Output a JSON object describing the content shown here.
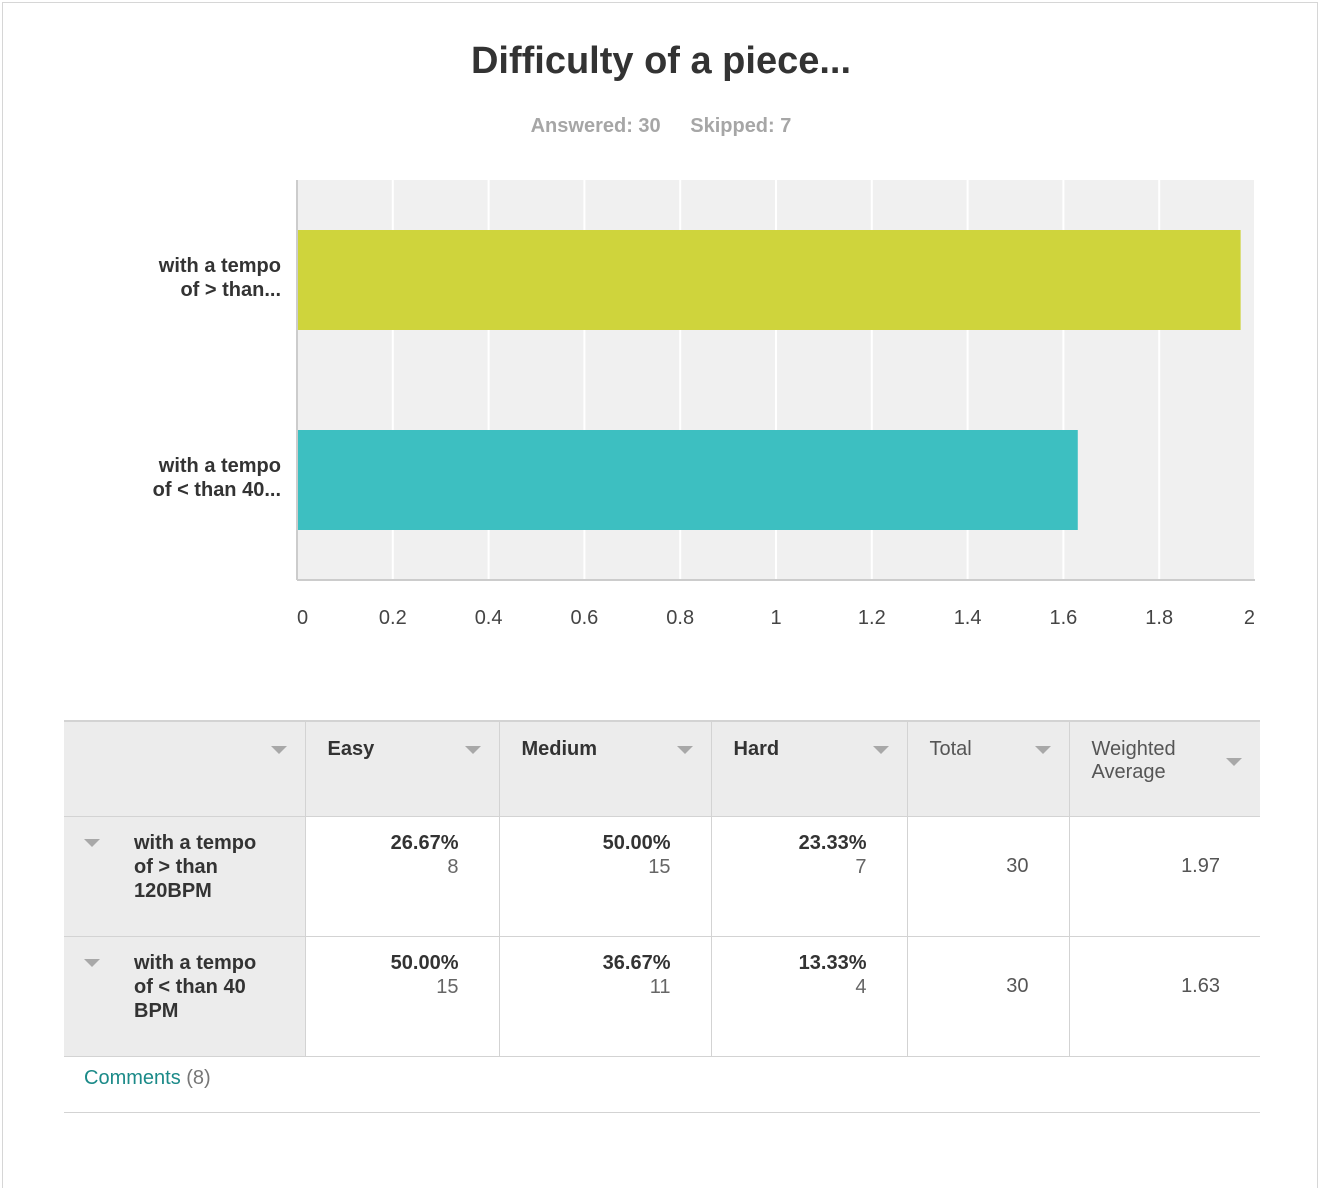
{
  "header": {
    "title": "Difficulty of a piece...",
    "answered": "Answered: 30",
    "skipped": "Skipped: 7"
  },
  "chart_data": {
    "type": "bar",
    "orientation": "horizontal",
    "title": "Difficulty of a piece...",
    "categories": [
      "with a tempo of > than...",
      "with a tempo of < than 40..."
    ],
    "category_lines": [
      [
        "with a tempo",
        "of > than..."
      ],
      [
        "with a tempo",
        "of < than 40..."
      ]
    ],
    "values": [
      1.97,
      1.63
    ],
    "colors": [
      "#cfd43c",
      "#3dbfc1"
    ],
    "xlim": [
      0,
      2
    ],
    "xticks": [
      "0",
      "0.2",
      "0.4",
      "0.6",
      "0.8",
      "1",
      "1.2",
      "1.4",
      "1.6",
      "1.8",
      "2"
    ],
    "grid": true,
    "xlabel": "",
    "ylabel": ""
  },
  "table": {
    "columns": [
      "",
      "Easy",
      "Medium",
      "Hard",
      "Total",
      "Weighted Average"
    ],
    "rows": [
      {
        "label": "with a tempo of > than 120BPM",
        "easy": {
          "pct": "26.67%",
          "count": "8"
        },
        "medium": {
          "pct": "50.00%",
          "count": "15"
        },
        "hard": {
          "pct": "23.33%",
          "count": "7"
        },
        "total": "30",
        "weighted_average": "1.97"
      },
      {
        "label": "with a tempo of < than 40 BPM",
        "easy": {
          "pct": "50.00%",
          "count": "15"
        },
        "medium": {
          "pct": "36.67%",
          "count": "11"
        },
        "hard": {
          "pct": "13.33%",
          "count": "4"
        },
        "total": "30",
        "weighted_average": "1.63"
      }
    ]
  },
  "comments": {
    "label": "Comments",
    "count": "(8)"
  }
}
